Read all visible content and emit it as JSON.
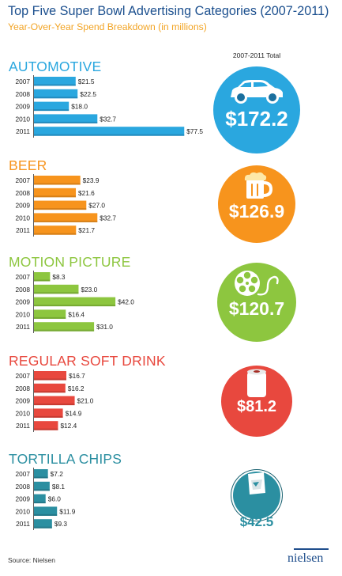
{
  "header": {
    "title": "Top Five Super Bowl Advertising Categories (2007-2011)",
    "subtitle": "Year-Over-Year Spend Breakdown (in millions)",
    "total_label": "2007-2011 Total"
  },
  "chart_data": [
    {
      "type": "bar",
      "title": "AUTOMOTIVE",
      "categories": [
        "2007",
        "2008",
        "2009",
        "2010",
        "2011"
      ],
      "values": [
        21.5,
        22.5,
        18.0,
        32.7,
        77.5
      ],
      "value_labels": [
        "$21.5",
        "$22.5",
        "$18.0",
        "$32.7",
        "$77.5"
      ],
      "total": "$172.2",
      "color": "#2aa7df",
      "dark": "#1a6f9e",
      "icon": "car-icon"
    },
    {
      "type": "bar",
      "title": "BEER",
      "categories": [
        "2007",
        "2008",
        "2009",
        "2010",
        "2011"
      ],
      "values": [
        23.9,
        21.6,
        27.0,
        32.7,
        21.7
      ],
      "value_labels": [
        "$23.9",
        "$21.6",
        "$27.0",
        "$32.7",
        "$21.7"
      ],
      "total": "$126.9",
      "color": "#f7941d",
      "dark": "#b86a10",
      "icon": "beer-mug-icon"
    },
    {
      "type": "bar",
      "title": "MOTION PICTURE",
      "categories": [
        "2007",
        "2008",
        "2009",
        "2010",
        "2011"
      ],
      "values": [
        8.3,
        23.0,
        42.0,
        16.4,
        31.0
      ],
      "value_labels": [
        "$8.3",
        "$23.0",
        "$42.0",
        "$16.4",
        "$31.0"
      ],
      "total": "$120.7",
      "color": "#8dc63f",
      "dark": "#5f8e26",
      "icon": "film-reel-icon"
    },
    {
      "type": "bar",
      "title": "REGULAR SOFT DRINK",
      "categories": [
        "2007",
        "2008",
        "2009",
        "2010",
        "2011"
      ],
      "values": [
        16.7,
        16.2,
        21.0,
        14.9,
        12.4
      ],
      "value_labels": [
        "$16.7",
        "$16.2",
        "$21.0",
        "$14.9",
        "$12.4"
      ],
      "total": "$81.2",
      "color": "#e8483e",
      "dark": "#a52c24",
      "icon": "soda-can-icon"
    },
    {
      "type": "bar",
      "title": "TORTILLA CHIPS",
      "categories": [
        "2007",
        "2008",
        "2009",
        "2010",
        "2011"
      ],
      "values": [
        7.2,
        8.1,
        6.0,
        11.9,
        9.3
      ],
      "value_labels": [
        "$7.2",
        "$8.1",
        "$6.0",
        "$11.9",
        "$9.3"
      ],
      "total": "$42.5",
      "color": "#2b8fa1",
      "dark": "#1b6271",
      "icon": "chip-bag-icon"
    }
  ],
  "footer": {
    "source": "Source: Nielsen",
    "brand": "nielsen"
  }
}
